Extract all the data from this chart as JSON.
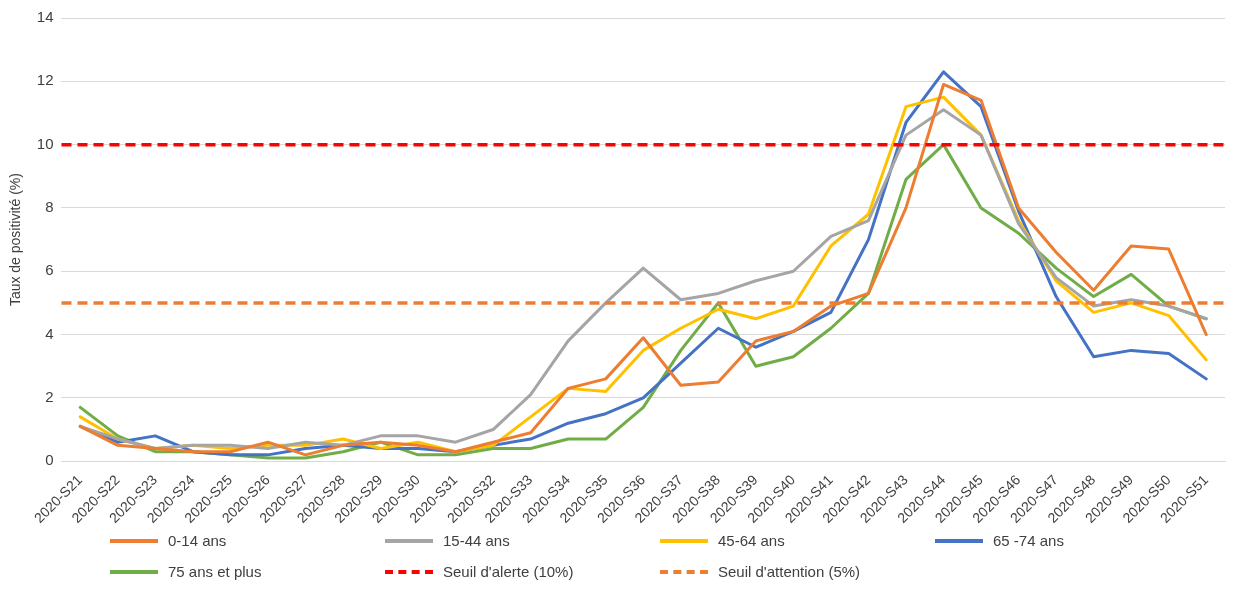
{
  "chart_data": {
    "type": "line",
    "ylabel": "Taux de positivité (%)",
    "categories": [
      "2020-S21",
      "2020-S22",
      "2020-S23",
      "2020-S24",
      "2020-S25",
      "2020-S26",
      "2020-S27",
      "2020-S28",
      "2020-S29",
      "2020-S30",
      "2020-S31",
      "2020-S32",
      "2020-S33",
      "2020-S34",
      "2020-S35",
      "2020-S36",
      "2020-S37",
      "2020-S38",
      "2020-S39",
      "2020-S40",
      "2020-S41",
      "2020-S42",
      "2020-S43",
      "2020-S44",
      "2020-S45",
      "2020-S46",
      "2020-S47",
      "2020-S48",
      "2020-S49",
      "2020-S50",
      "2020-S51"
    ],
    "series": [
      {
        "name": "0-14 ans",
        "color": "#ed7d31",
        "values": [
          1.1,
          0.5,
          0.4,
          0.3,
          0.3,
          0.6,
          0.2,
          0.5,
          0.6,
          0.5,
          0.3,
          0.6,
          0.9,
          2.3,
          2.6,
          3.9,
          2.4,
          2.5,
          3.8,
          4.1,
          4.9,
          5.3,
          8.0,
          11.9,
          11.4,
          8.0,
          6.6,
          5.4,
          6.8,
          6.7,
          4.0
        ]
      },
      {
        "name": "15-44 ans",
        "color": "#a5a5a5",
        "values": [
          1.1,
          0.7,
          0.4,
          0.5,
          0.5,
          0.4,
          0.6,
          0.5,
          0.8,
          0.8,
          0.6,
          1.0,
          2.1,
          3.8,
          5.0,
          6.1,
          5.1,
          5.3,
          5.7,
          6.0,
          7.1,
          7.6,
          10.3,
          11.1,
          10.3,
          7.5,
          5.8,
          4.9,
          5.1,
          4.9,
          4.5
        ]
      },
      {
        "name": "45-64 ans",
        "color": "#ffc000",
        "values": [
          1.4,
          0.7,
          0.4,
          0.5,
          0.4,
          0.5,
          0.5,
          0.7,
          0.4,
          0.6,
          0.3,
          0.5,
          1.4,
          2.3,
          2.2,
          3.5,
          4.2,
          4.8,
          4.5,
          4.9,
          6.8,
          7.8,
          11.2,
          11.5,
          10.3,
          7.6,
          5.7,
          4.7,
          5.0,
          4.6,
          3.2
        ]
      },
      {
        "name": "65 -74 ans",
        "color": "#4472c4",
        "values": [
          1.1,
          0.6,
          0.8,
          0.3,
          0.2,
          0.2,
          0.4,
          0.5,
          0.4,
          0.4,
          0.3,
          0.5,
          0.7,
          1.2,
          1.5,
          2.0,
          3.1,
          4.2,
          3.6,
          4.1,
          4.7,
          7.0,
          10.7,
          12.3,
          11.2,
          7.9,
          5.2,
          3.3,
          3.5,
          3.4,
          2.6
        ]
      },
      {
        "name": "75 ans et plus",
        "color": "#70ad47",
        "values": [
          1.7,
          0.8,
          0.3,
          0.3,
          0.2,
          0.1,
          0.1,
          0.3,
          0.6,
          0.2,
          0.2,
          0.4,
          0.4,
          0.7,
          0.7,
          1.7,
          3.5,
          5.0,
          3.0,
          3.3,
          4.2,
          5.3,
          8.9,
          10.0,
          8.0,
          7.2,
          6.1,
          5.2,
          5.9,
          4.9,
          4.5
        ]
      }
    ],
    "ref_lines": [
      {
        "axis": "y",
        "value": 10,
        "label": "Seuil d'alerte (10%)",
        "color": "#ff0000",
        "line_style": "dashed"
      },
      {
        "axis": "y",
        "value": 5,
        "label": "Seuil d'attention (5%)",
        "color": "#ed7d31",
        "line_style": "dashed"
      }
    ],
    "ylim": [
      0,
      14
    ],
    "yticks": [
      0,
      2,
      4,
      6,
      8,
      10,
      12,
      14
    ],
    "grid": "y",
    "legend": "bottom",
    "marker": "none",
    "line_style": "solid"
  }
}
